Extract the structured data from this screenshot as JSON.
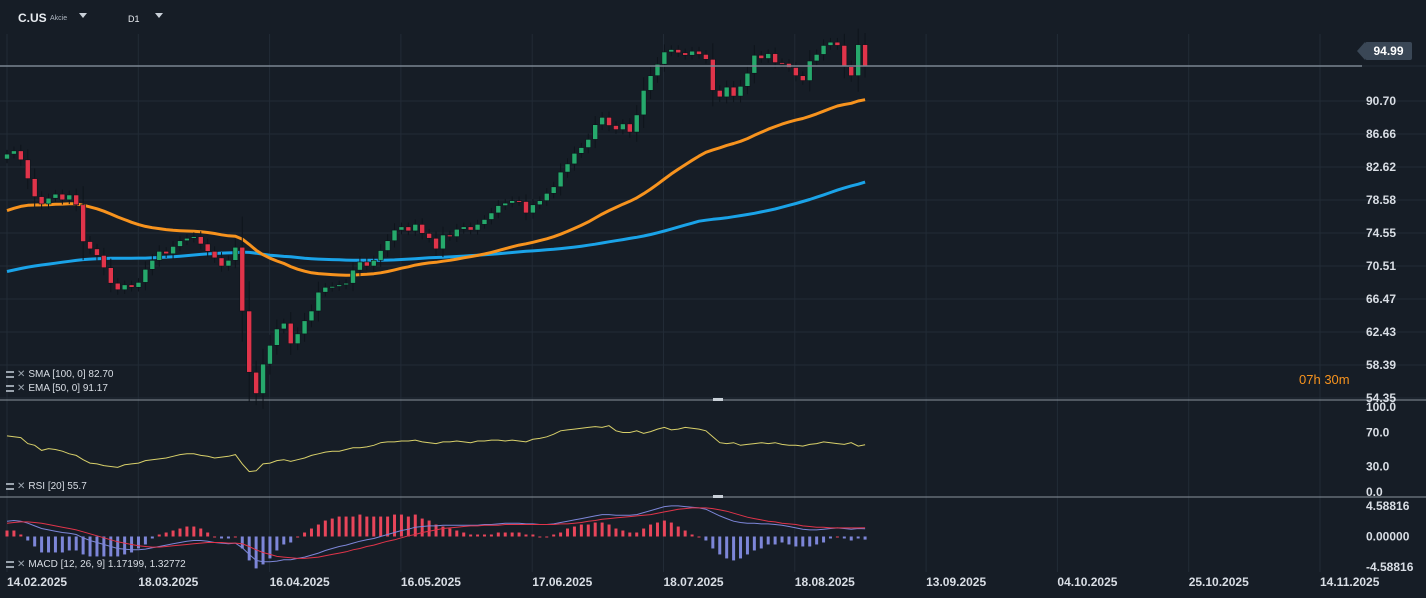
{
  "header": {
    "symbol": "C.US",
    "symbol_type": "Akcie",
    "timeframe": "D1"
  },
  "countdown": {
    "hours": "07",
    "h_unit": "h",
    "minutes": "30",
    "m_unit": "m"
  },
  "current_price_label": "94.99",
  "colors": {
    "background": "#161d26",
    "grid": "#222b36",
    "up_candle": "#26a96c",
    "down_candle": "#e0344a",
    "sma": "#1aa3e8",
    "ema": "#f7931e",
    "rsi": "#d8d06a",
    "macd_line": "#7d86d8",
    "signal_line": "#e0344a",
    "hist_pos": "#e8455a",
    "hist_neg": "#7d86d8",
    "divider": "#8a939c"
  },
  "chart_data": [
    {
      "type": "candlestick",
      "name": "price",
      "y_ticks": [
        "94.99",
        "90.70",
        "86.66",
        "82.62",
        "78.58",
        "74.55",
        "70.51",
        "66.47",
        "62.43",
        "58.39",
        "54.35"
      ],
      "ylim": [
        54.35,
        98.9
      ],
      "x_tick_labels": [
        "14.02.2025",
        "18.03.2025",
        "16.04.2025",
        "16.05.2025",
        "17.06.2025",
        "18.07.2025",
        "18.08.2025",
        "13.09.2025",
        "04.10.2025",
        "25.10.2025",
        "14.11.2025"
      ],
      "current_price": 94.99,
      "closes": [
        84.2,
        84.6,
        83.5,
        81.2,
        79.0,
        78.1,
        78.8,
        79.3,
        78.6,
        79.2,
        78.0,
        73.5,
        72.6,
        71.8,
        70.3,
        68.4,
        67.6,
        68.2,
        67.9,
        68.5,
        70.1,
        71.2,
        72.3,
        72.0,
        72.9,
        73.6,
        73.9,
        74.1,
        73.2,
        72.3,
        71.5,
        70.5,
        71.2,
        72.8,
        65.0,
        57.5,
        54.9,
        58.5,
        60.8,
        62.8,
        63.5,
        61.0,
        62.2,
        63.8,
        65.0,
        67.3,
        67.9,
        68.0,
        68.2,
        68.4,
        70.0,
        71.0,
        70.5,
        71.2,
        72.4,
        73.6,
        74.9,
        75.3,
        74.8,
        75.6,
        74.5,
        73.9,
        72.6,
        74.3,
        74.1,
        75.0,
        75.3,
        74.9,
        75.6,
        76.2,
        77.0,
        77.9,
        78.2,
        78.5,
        78.4,
        77.0,
        78.0,
        78.5,
        79.4,
        80.2,
        82.0,
        83.0,
        84.3,
        85.0,
        86.0,
        87.8,
        88.7,
        87.7,
        87.2,
        87.9,
        86.9,
        89.0,
        92.0,
        93.8,
        95.2,
        96.7,
        97.0,
        96.6,
        96.3,
        96.8,
        96.4,
        95.8,
        92.0,
        91.2,
        92.4,
        91.3,
        92.5,
        94.1,
        96.3,
        95.9,
        96.5,
        95.4,
        95.3,
        94.8,
        93.8,
        93.2,
        95.6,
        96.4,
        97.5,
        97.9,
        97.5,
        94.9,
        93.8,
        97.6,
        94.99
      ],
      "sma": {
        "label": "SMA [100, 0] 82.70",
        "last": 82.7
      },
      "ema": {
        "label": "EMA [50, 0] 91.17",
        "last": 91.17
      }
    },
    {
      "type": "line",
      "name": "rsi",
      "label": "RSI [20] 55.7",
      "last": 55.7,
      "y_ticks": [
        "100.0",
        "70.0",
        "30.0",
        "0.0"
      ],
      "ylim": [
        0,
        100
      ],
      "values": [
        66,
        65,
        64,
        57,
        55,
        49,
        51,
        50,
        48,
        45,
        43,
        38,
        34,
        33,
        31,
        30,
        29,
        32,
        33,
        34,
        37,
        38,
        39,
        40,
        42,
        44,
        45,
        45,
        43,
        42,
        40,
        41,
        42,
        44,
        33,
        24,
        25,
        33,
        34,
        37,
        38,
        36,
        38,
        40,
        43,
        45,
        47,
        48,
        48,
        50,
        52,
        52,
        53,
        55,
        58,
        59,
        59,
        60,
        60,
        61,
        59,
        58,
        57,
        59,
        59,
        60,
        59,
        58,
        60,
        60,
        61,
        61,
        60,
        61,
        60,
        59,
        62,
        63,
        65,
        68,
        72,
        73,
        74,
        75,
        76,
        77,
        76,
        78,
        72,
        70,
        70,
        72,
        69,
        71,
        74,
        76,
        73,
        74,
        76,
        75,
        74,
        72,
        65,
        58,
        57,
        58,
        55,
        56,
        57,
        58,
        57,
        58,
        56,
        55,
        55,
        54,
        56,
        57,
        59,
        58,
        57,
        56,
        58,
        54,
        55.7
      ]
    },
    {
      "type": "bar+line",
      "name": "macd",
      "label": "MACD [12, 26, 9] 1.17199, 1.32772",
      "last_macd": 1.17199,
      "last_signal": 1.32772,
      "y_ticks": [
        "4.58816",
        "0.00000",
        "-4.58816"
      ],
      "ylim": [
        -4.58816,
        4.58816
      ],
      "macd": [
        2.3,
        2.4,
        2.3,
        2.0,
        1.6,
        1.2,
        1.0,
        0.8,
        0.6,
        0.5,
        0.3,
        -0.2,
        -0.6,
        -0.9,
        -1.2,
        -1.5,
        -1.8,
        -1.9,
        -2.0,
        -2.0,
        -1.9,
        -1.7,
        -1.5,
        -1.3,
        -1.1,
        -0.9,
        -0.7,
        -0.6,
        -0.6,
        -0.7,
        -0.9,
        -1.0,
        -1.1,
        -1.0,
        -1.7,
        -2.7,
        -3.6,
        -3.8,
        -3.8,
        -3.7,
        -3.5,
        -3.5,
        -3.3,
        -3.1,
        -2.8,
        -2.5,
        -2.1,
        -1.8,
        -1.5,
        -1.3,
        -1.0,
        -0.7,
        -0.5,
        -0.3,
        0.0,
        0.3,
        0.6,
        0.9,
        1.1,
        1.4,
        1.5,
        1.6,
        1.6,
        1.7,
        1.7,
        1.7,
        1.7,
        1.7,
        1.7,
        1.8,
        1.8,
        1.9,
        2.0,
        2.0,
        2.0,
        1.9,
        1.9,
        1.8,
        1.8,
        1.9,
        2.1,
        2.3,
        2.5,
        2.7,
        2.9,
        3.1,
        3.3,
        3.3,
        3.2,
        3.2,
        3.2,
        3.3,
        3.6,
        3.9,
        4.2,
        4.5,
        4.6,
        4.6,
        4.5,
        4.4,
        4.3,
        4.1,
        3.6,
        3.1,
        2.7,
        2.3,
        2.1,
        2.0,
        2.0,
        1.9,
        1.9,
        1.8,
        1.7,
        1.5,
        1.3,
        1.1,
        1.0,
        1.0,
        1.1,
        1.2,
        1.3,
        1.2,
        1.1,
        1.2,
        1.17199
      ],
      "signal": [
        2.0,
        2.1,
        2.2,
        2.2,
        2.1,
        2.0,
        1.8,
        1.6,
        1.4,
        1.2,
        1.0,
        0.7,
        0.4,
        0.1,
        -0.2,
        -0.5,
        -0.8,
        -1.0,
        -1.2,
        -1.4,
        -1.5,
        -1.6,
        -1.6,
        -1.5,
        -1.4,
        -1.3,
        -1.2,
        -1.1,
        -1.0,
        -0.9,
        -0.9,
        -0.9,
        -1.0,
        -1.0,
        -1.1,
        -1.5,
        -2.0,
        -2.4,
        -2.7,
        -3.0,
        -3.1,
        -3.2,
        -3.3,
        -3.3,
        -3.2,
        -3.1,
        -2.9,
        -2.7,
        -2.5,
        -2.3,
        -2.0,
        -1.8,
        -1.5,
        -1.3,
        -1.0,
        -0.7,
        -0.5,
        -0.2,
        0.1,
        0.3,
        0.6,
        0.8,
        1.0,
        1.2,
        1.3,
        1.4,
        1.5,
        1.6,
        1.6,
        1.7,
        1.7,
        1.7,
        1.8,
        1.8,
        1.8,
        1.8,
        1.8,
        1.8,
        1.8,
        1.8,
        1.9,
        1.9,
        2.0,
        2.1,
        2.3,
        2.4,
        2.6,
        2.7,
        2.8,
        2.9,
        3.0,
        3.1,
        3.2,
        3.3,
        3.5,
        3.7,
        3.9,
        4.1,
        4.2,
        4.3,
        4.3,
        4.3,
        4.2,
        4.0,
        3.8,
        3.5,
        3.2,
        2.9,
        2.7,
        2.5,
        2.3,
        2.2,
        2.0,
        1.9,
        1.8,
        1.6,
        1.5,
        1.4,
        1.4,
        1.3,
        1.3,
        1.3,
        1.3,
        1.3,
        1.32772
      ]
    }
  ]
}
